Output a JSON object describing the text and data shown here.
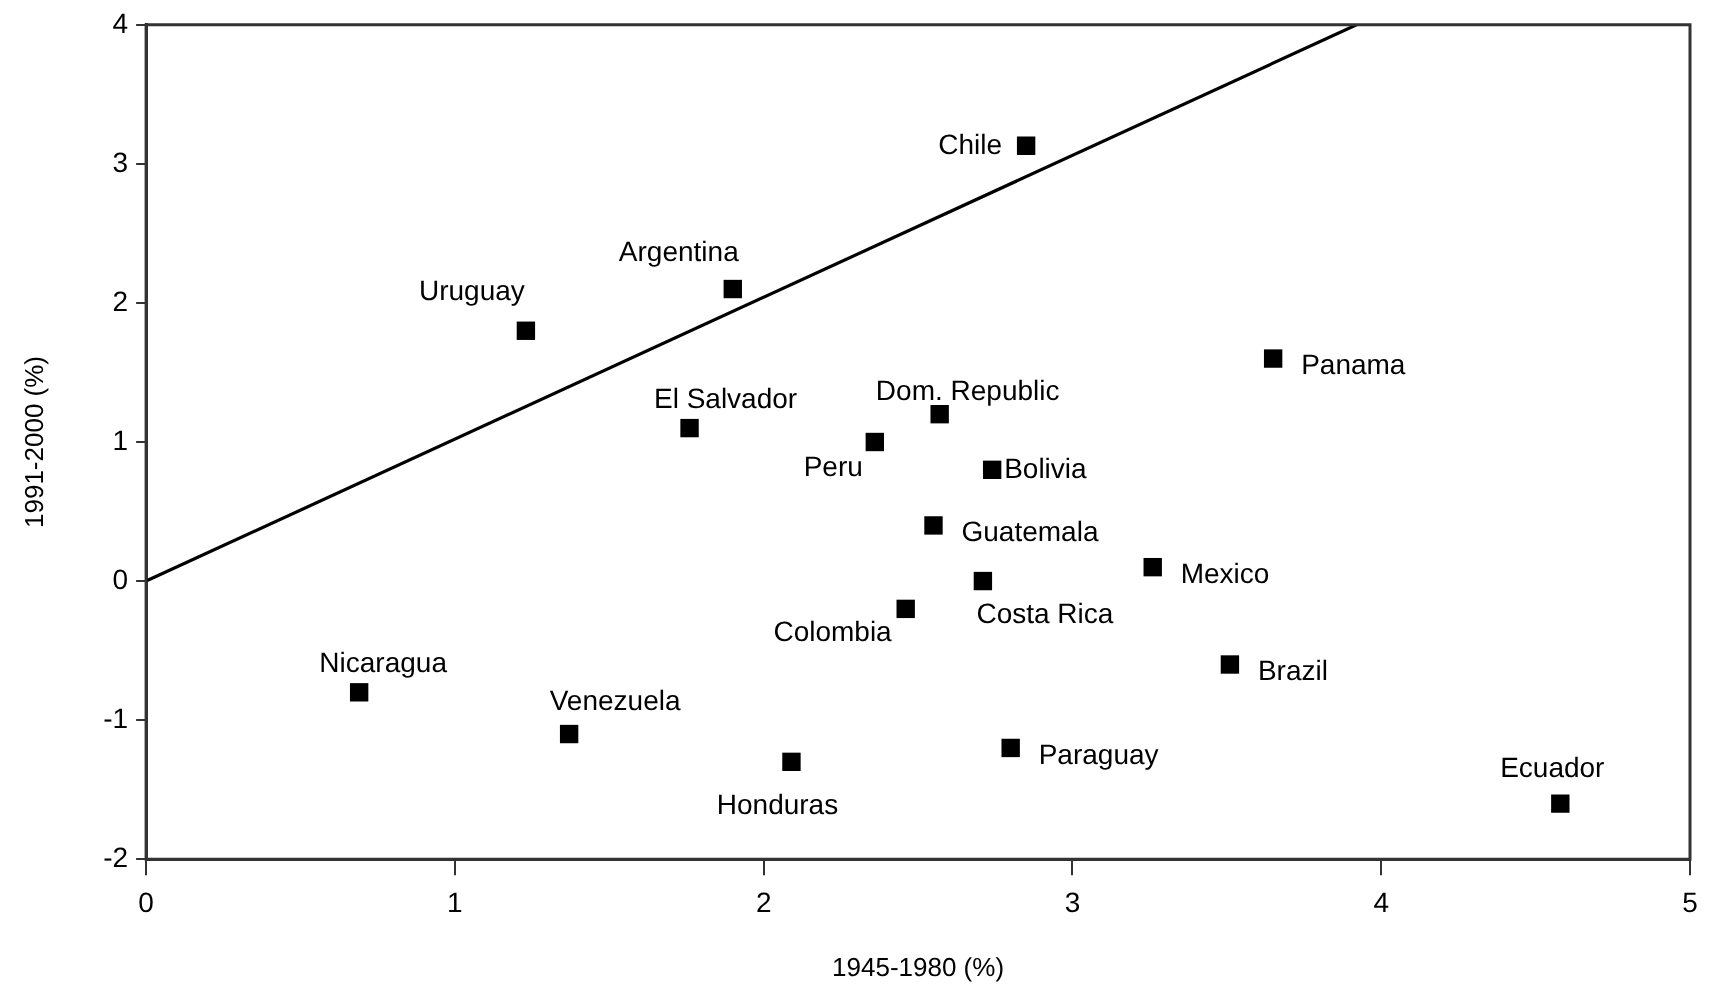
{
  "chart_data": {
    "type": "scatter",
    "xlabel": "1945-1980 (%)",
    "ylabel": "1991-2000 (%)",
    "xlim": [
      0,
      5
    ],
    "ylim": [
      -2,
      4
    ],
    "xticks": [
      0,
      1,
      2,
      3,
      4,
      5
    ],
    "yticks": [
      -2,
      -1,
      0,
      1,
      2,
      3,
      4
    ],
    "grid": false,
    "legend": false,
    "marker": "square",
    "series": [
      {
        "name": "Uruguay",
        "color": "#000000",
        "x": [
          1.23
        ],
        "values": [
          1.8
        ]
      },
      {
        "name": "Argentina",
        "color": "#000000",
        "x": [
          1.9
        ],
        "values": [
          2.1
        ]
      },
      {
        "name": "El Salvador",
        "color": "#000000",
        "x": [
          1.76
        ],
        "values": [
          1.1
        ]
      },
      {
        "name": "Chile",
        "color": "#000000",
        "x": [
          2.85
        ],
        "values": [
          3.13
        ]
      },
      {
        "name": "Panama",
        "color": "#000000",
        "x": [
          3.65
        ],
        "values": [
          1.6
        ]
      },
      {
        "name": "Dom. Republic",
        "color": "#000000",
        "x": [
          2.57
        ],
        "values": [
          1.2
        ]
      },
      {
        "name": "Peru",
        "color": "#000000",
        "x": [
          2.36
        ],
        "values": [
          1.0
        ]
      },
      {
        "name": "Bolivia",
        "color": "#000000",
        "x": [
          2.74
        ],
        "values": [
          0.8
        ]
      },
      {
        "name": "Guatemala",
        "color": "#000000",
        "x": [
          2.55
        ],
        "values": [
          0.4
        ]
      },
      {
        "name": "Mexico",
        "color": "#000000",
        "x": [
          3.26
        ],
        "values": [
          0.1
        ]
      },
      {
        "name": "Costa Rica",
        "color": "#000000",
        "x": [
          2.71
        ],
        "values": [
          0.0
        ]
      },
      {
        "name": "Colombia",
        "color": "#000000",
        "x": [
          2.46
        ],
        "values": [
          -0.2
        ]
      },
      {
        "name": "Brazil",
        "color": "#000000",
        "x": [
          3.51
        ],
        "values": [
          -0.6
        ]
      },
      {
        "name": "Paraguay",
        "color": "#000000",
        "x": [
          2.8
        ],
        "values": [
          -1.2
        ]
      },
      {
        "name": "Ecuador",
        "color": "#000000",
        "x": [
          4.58
        ],
        "values": [
          -1.6
        ]
      },
      {
        "name": "Honduras",
        "color": "#000000",
        "x": [
          2.09
        ],
        "values": [
          -1.3
        ]
      },
      {
        "name": "Venezuela",
        "color": "#000000",
        "x": [
          1.37
        ],
        "values": [
          -1.1
        ]
      },
      {
        "name": "Nicaragua",
        "color": "#000000",
        "x": [
          0.69
        ],
        "values": [
          -0.8
        ]
      },
      {
        "type": "line",
        "color": "#000000",
        "marker": "none",
        "x": [
          0,
          3.92
        ],
        "values": [
          0,
          4
        ]
      }
    ]
  }
}
